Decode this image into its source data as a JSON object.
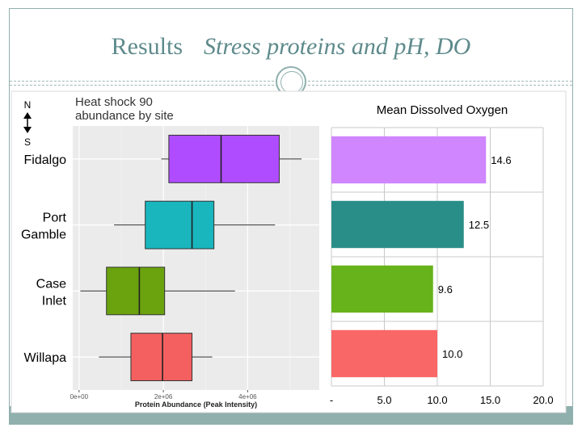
{
  "slide": {
    "title": "Results",
    "subtitle": "Stress proteins and pH, DO"
  },
  "compass": {
    "north": "N",
    "south": "S"
  },
  "chart_data": [
    {
      "type": "box",
      "title": "Heat shock 90 abundance by site",
      "title_lines": [
        "Heat shock 90",
        "abundance by site"
      ],
      "xlabel": "Protein Abundance (Peak Intensity)",
      "ylabel": "",
      "orientation": "horizontal",
      "xlim": [
        -150000,
        5700000
      ],
      "xticks": [
        0,
        2000000,
        4000000
      ],
      "xtick_labels": [
        "0e+00",
        "2e+06",
        "4e+06"
      ],
      "grid": true,
      "categories": [
        "Fidalgo",
        "Port Gamble",
        "Case Inlet",
        "Willapa"
      ],
      "category_lines": [
        [
          "Fidalgo"
        ],
        [
          "Port",
          "Gamble"
        ],
        [
          "Case",
          "Inlet"
        ],
        [
          "Willapa"
        ]
      ],
      "boxes": [
        {
          "site": "Fidalgo",
          "min": 1950000,
          "q1": 2130000,
          "median": 3370000,
          "q3": 4750000,
          "max": 5280000,
          "color": "#b04cff"
        },
        {
          "site": "Port Gamble",
          "min": 830000,
          "q1": 1570000,
          "median": 2680000,
          "q3": 3200000,
          "max": 4650000,
          "color": "#19b6be"
        },
        {
          "site": "Case Inlet",
          "min": 30000,
          "q1": 650000,
          "median": 1430000,
          "q3": 2030000,
          "max": 3700000,
          "color": "#6aa30e"
        },
        {
          "site": "Willapa",
          "min": 470000,
          "q1": 1230000,
          "median": 1980000,
          "q3": 2680000,
          "max": 3160000,
          "color": "#f46060"
        }
      ]
    },
    {
      "type": "bar",
      "orientation": "horizontal",
      "title": "Mean Dissolved Oxygen",
      "xlabel": "",
      "ylabel": "",
      "categories": [
        "Fidalgo",
        "Port Gamble",
        "Case Inlet",
        "Willapa"
      ],
      "values": [
        14.6,
        12.5,
        9.6,
        10.0
      ],
      "value_labels": [
        "14.6",
        "12.5",
        "9.6",
        "10.0"
      ],
      "colors": [
        "#cf86ff",
        "#2a8e88",
        "#67b31b",
        "#fa6767"
      ],
      "xlim": [
        0,
        20
      ],
      "xticks": [
        0,
        5,
        10,
        15,
        20
      ],
      "xtick_labels": [
        "-",
        "5.0",
        "10.0",
        "15.0",
        "20.0"
      ],
      "grid": true
    }
  ]
}
